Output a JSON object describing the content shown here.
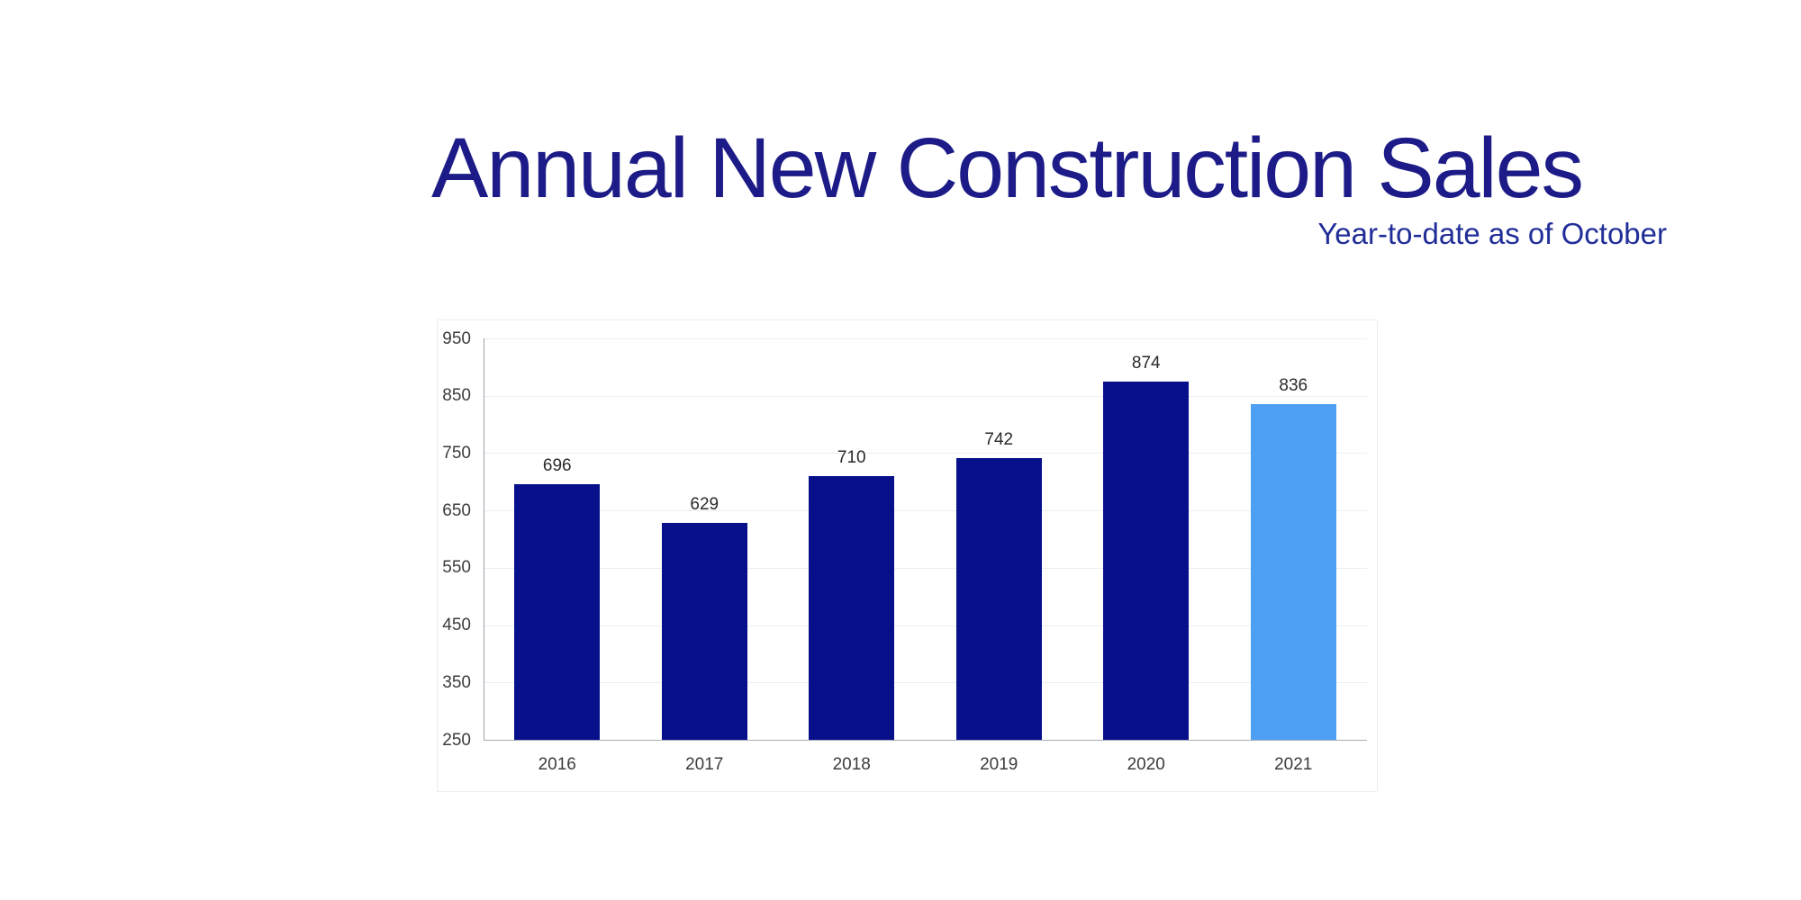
{
  "header": {
    "title": "Annual New Construction Sales",
    "subtitle": "Year-to-date as of October"
  },
  "colors": {
    "background": "#ffffff",
    "title_text": "#1c1b87",
    "subtitle_text": "#212e98",
    "bar_primary": "#070f8a",
    "bar_highlight": "#4c9ff2",
    "gridline": "#e9eef3",
    "axis_line": "#a6adb5",
    "tick_label": "#3c3c3c",
    "data_label": "#2a2a2a"
  },
  "chart_data": {
    "type": "bar",
    "title": "Annual New Construction Sales",
    "subtitle": "Year-to-date as of October",
    "categories": [
      "2016",
      "2017",
      "2018",
      "2019",
      "2020",
      "2021"
    ],
    "values": [
      696,
      629,
      710,
      742,
      874,
      836
    ],
    "bar_colors": [
      "#070f8a",
      "#070f8a",
      "#070f8a",
      "#070f8a",
      "#070f8a",
      "#4c9ff2"
    ],
    "highlighted_category": "2021",
    "xlabel": "",
    "ylabel": "",
    "ylim": [
      250,
      950
    ],
    "yticks": [
      250,
      350,
      450,
      550,
      650,
      750,
      850,
      950
    ],
    "grid": true,
    "legend_position": "none",
    "data_labels": true
  }
}
